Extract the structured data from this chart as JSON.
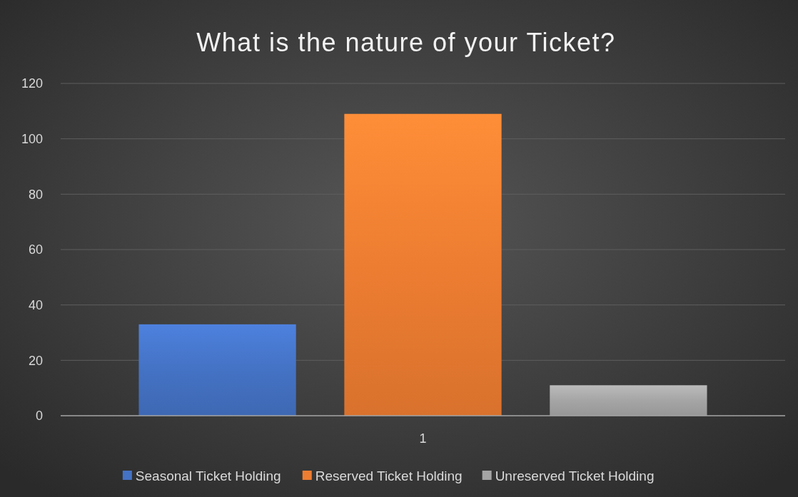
{
  "chart_data": {
    "type": "bar",
    "title": "What is the nature of your Ticket?",
    "categories": [
      "1"
    ],
    "series": [
      {
        "name": "Seasonal Ticket Holding",
        "color": "#4472c4",
        "values": [
          33
        ]
      },
      {
        "name": "Reserved Ticket Holding",
        "color": "#ed7d31",
        "values": [
          109
        ]
      },
      {
        "name": "Unreserved Ticket Holding",
        "color": "#a5a5a5",
        "values": [
          11
        ]
      }
    ],
    "ylim": [
      0,
      120
    ],
    "yticks": [
      0,
      20,
      40,
      60,
      80,
      100,
      120
    ],
    "grid": "y",
    "legend": "bottom"
  }
}
